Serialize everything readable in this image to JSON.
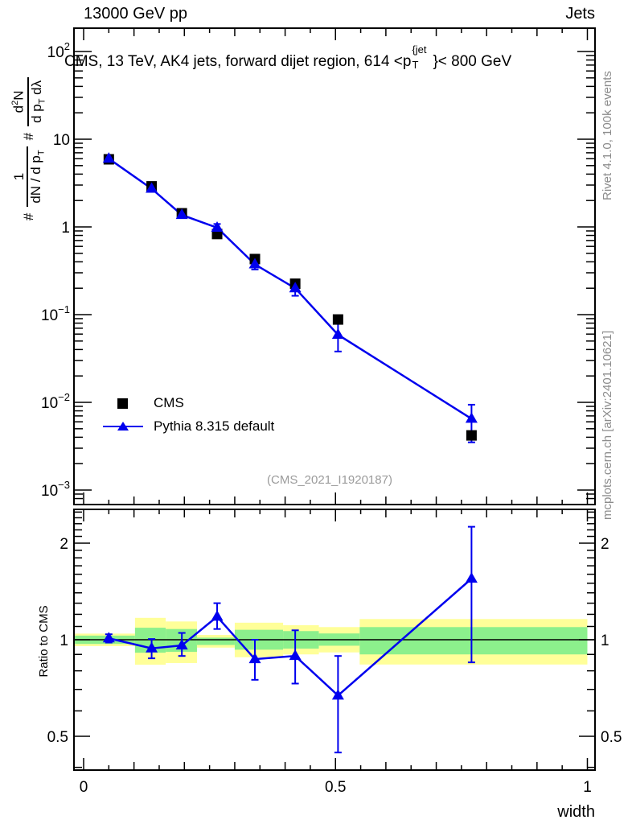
{
  "header": {
    "left": "13000 GeV pp",
    "right": "Jets"
  },
  "title": {
    "pre": "CMS, 13 TeV, AK4 jets, forward dijet region, 614 <p",
    "sup": "{jet",
    "sub": "T",
    "post": "}< 800 GeV"
  },
  "ylabel": {
    "hash1": "#",
    "f1num": "1",
    "f1den": "dN / d p",
    "f1densub": "T",
    "hash2": "#",
    "f2num1": "d",
    "f2numsup": "2",
    "f2num2": "N",
    "f2den1": "d p",
    "f2densub": "T",
    "f2den2": " dλ"
  },
  "ratio_label": "Ratio to CMS",
  "watermark": "(CMS_2021_I1920187)",
  "side_notes": {
    "top": "Rivet 4.1.0,  100k events",
    "bottom": "mcplots.cern.ch [arXiv:2401.10621]"
  },
  "legend": {
    "items": [
      {
        "label": "CMS",
        "marker": "black-square"
      },
      {
        "label": "Pythia 8.315 default",
        "marker": "blue-line-triangle"
      }
    ]
  },
  "colors": {
    "mc_blue": "#0000ee",
    "data_black": "#000000",
    "band_yellow": "#ffff99",
    "band_green": "#8cf08c",
    "gray_text": "#8c8c8c"
  },
  "chart_data": {
    "type": "line",
    "title": "CMS, 13 TeV, AK4 jets, forward dijet region, 614 <p_T^{jet}< 800 GeV",
    "xlabel": "width",
    "xlim": [
      0,
      1
    ],
    "ylim_main": [
      0.0007,
      170
    ],
    "ylim_ratio": [
      0.39,
      2.55
    ],
    "x": [
      0.05,
      0.135,
      0.195,
      0.265,
      0.34,
      0.42,
      0.505,
      0.77
    ],
    "series": [
      {
        "name": "CMS",
        "marker": "square",
        "color": "#000000",
        "values": [
          5.9,
          2.9,
          1.43,
          0.83,
          0.43,
          0.225,
          0.088,
          0.0042
        ]
      },
      {
        "name": "Pythia 8.315 default",
        "marker": "triangle",
        "color": "#0000ee",
        "values": [
          6.0,
          2.73,
          1.37,
          0.98,
          0.374,
          0.2,
          0.059,
          0.0065
        ],
        "err_up": [
          0.18,
          0.18,
          0.13,
          0.1,
          0.056,
          0.045,
          0.036,
          0.0029
        ],
        "err_dn": [
          0.18,
          0.18,
          0.1,
          0.083,
          0.047,
          0.036,
          0.021,
          0.003
        ]
      }
    ],
    "ratio": {
      "name": "Pythia 8.315 default / CMS",
      "values": [
        1.01,
        0.94,
        0.96,
        1.18,
        0.87,
        0.89,
        0.67,
        1.55
      ],
      "err_up": [
        0.03,
        0.065,
        0.09,
        0.12,
        0.13,
        0.18,
        0.22,
        0.7
      ],
      "err_dn": [
        0.03,
        0.065,
        0.07,
        0.1,
        0.12,
        0.16,
        0.225,
        0.7
      ],
      "bands": [
        {
          "x0": 0.0,
          "x1": 0.102,
          "yellow": [
            1.045,
            0.955
          ],
          "green": [
            1.03,
            0.97
          ]
        },
        {
          "x0": 0.102,
          "x1": 0.163,
          "yellow": [
            1.17,
            0.836
          ],
          "green": [
            1.09,
            0.911
          ]
        },
        {
          "x0": 0.163,
          "x1": 0.225,
          "yellow": [
            1.14,
            0.846
          ],
          "green": [
            1.08,
            0.917
          ]
        },
        {
          "x0": 0.225,
          "x1": 0.3,
          "yellow": [
            1.035,
            0.945
          ],
          "green": [
            1.015,
            0.963
          ]
        },
        {
          "x0": 0.3,
          "x1": 0.396,
          "yellow": [
            1.13,
            0.882
          ],
          "green": [
            1.074,
            0.931
          ]
        },
        {
          "x0": 0.396,
          "x1": 0.467,
          "yellow": [
            1.11,
            0.9
          ],
          "green": [
            1.064,
            0.938
          ]
        },
        {
          "x0": 0.467,
          "x1": 0.548,
          "yellow": [
            1.095,
            0.913
          ],
          "green": [
            1.046,
            0.958
          ]
        },
        {
          "x0": 0.548,
          "x1": 1.0,
          "yellow": [
            1.16,
            0.837
          ],
          "green": [
            1.095,
            0.9
          ]
        }
      ]
    },
    "axes": {
      "x": {
        "ticks": [
          {
            "v": 0,
            "label": "0"
          },
          {
            "v": 0.5,
            "label": "0.5"
          },
          {
            "v": 1,
            "label": "1"
          }
        ],
        "minor_step": 0.05,
        "medium_step": 0.1
      },
      "y_main": {
        "log": true,
        "ticks": [
          {
            "v": 100,
            "base": "10",
            "exp": "2"
          },
          {
            "v": 10,
            "base": "10",
            "exp": ""
          },
          {
            "v": 1,
            "base": "1",
            "exp": ""
          },
          {
            "v": 0.1,
            "base": "10",
            "exp": "−1"
          },
          {
            "v": 0.01,
            "base": "10",
            "exp": "−2"
          },
          {
            "v": 0.001,
            "base": "10",
            "exp": "−3"
          }
        ]
      },
      "y_ratio": {
        "log": true,
        "ticks": [
          {
            "v": 2,
            "label": "2"
          },
          {
            "v": 1,
            "label": "1"
          },
          {
            "v": 0.5,
            "label": "0.5"
          }
        ],
        "minor_from": 0.4,
        "minor_to": 2.5,
        "minor_step": 0.1
      }
    }
  }
}
